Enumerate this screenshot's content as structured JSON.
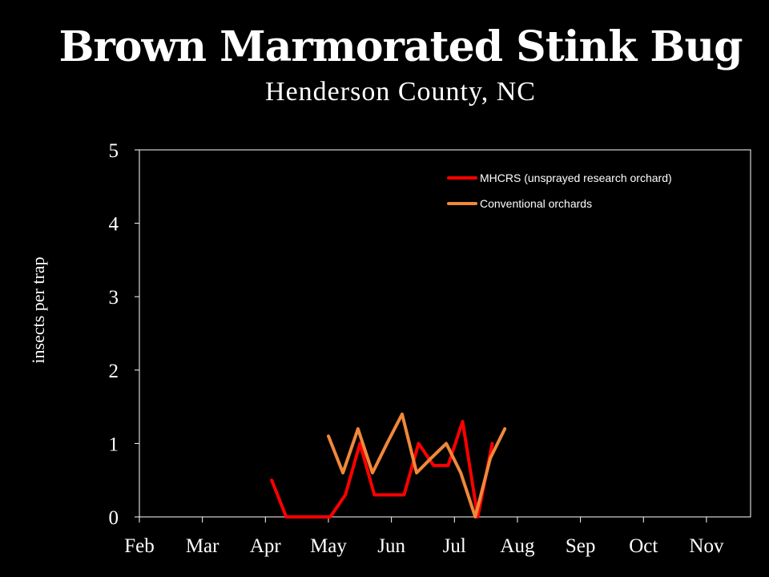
{
  "chart_data": {
    "type": "line",
    "title": "Brown Marmorated Stink Bug",
    "subtitle": "Henderson County, NC",
    "ylabel": "insects per trap",
    "xlabel": "",
    "ylim": [
      0,
      5
    ],
    "yticks": [
      "0",
      "1",
      "2",
      "3",
      "4",
      "5"
    ],
    "xticks": [
      "Feb",
      "Mar",
      "Apr",
      "May",
      "Jun",
      "Jul",
      "Aug",
      "Sep",
      "Oct",
      "Nov"
    ],
    "xlim": [
      0,
      9.7
    ],
    "grid": false,
    "legend_position": "top-right",
    "series": [
      {
        "name": "MHCRS (unsprayed research orchard)",
        "color": "#ff0000",
        "x": [
          2.1,
          2.33,
          2.57,
          2.8,
          3.03,
          3.27,
          3.5,
          3.73,
          3.97,
          4.2,
          4.43,
          4.67,
          4.9,
          5.13,
          5.37,
          5.6
        ],
        "y": [
          0.5,
          0.0,
          0.0,
          0.0,
          0.0,
          0.3,
          1.0,
          0.3,
          0.3,
          0.3,
          1.0,
          0.7,
          0.7,
          1.3,
          0.0,
          1.0
        ]
      },
      {
        "name": "Conventional orchards",
        "color": "#f0883a",
        "x": [
          3.0,
          3.23,
          3.47,
          3.7,
          3.93,
          4.17,
          4.4,
          4.63,
          4.87,
          5.1,
          5.33,
          5.57,
          5.8
        ],
        "y": [
          1.1,
          0.6,
          1.2,
          0.6,
          1.0,
          1.4,
          0.6,
          0.8,
          1.0,
          0.6,
          0.0,
          0.8,
          1.2
        ]
      }
    ]
  }
}
